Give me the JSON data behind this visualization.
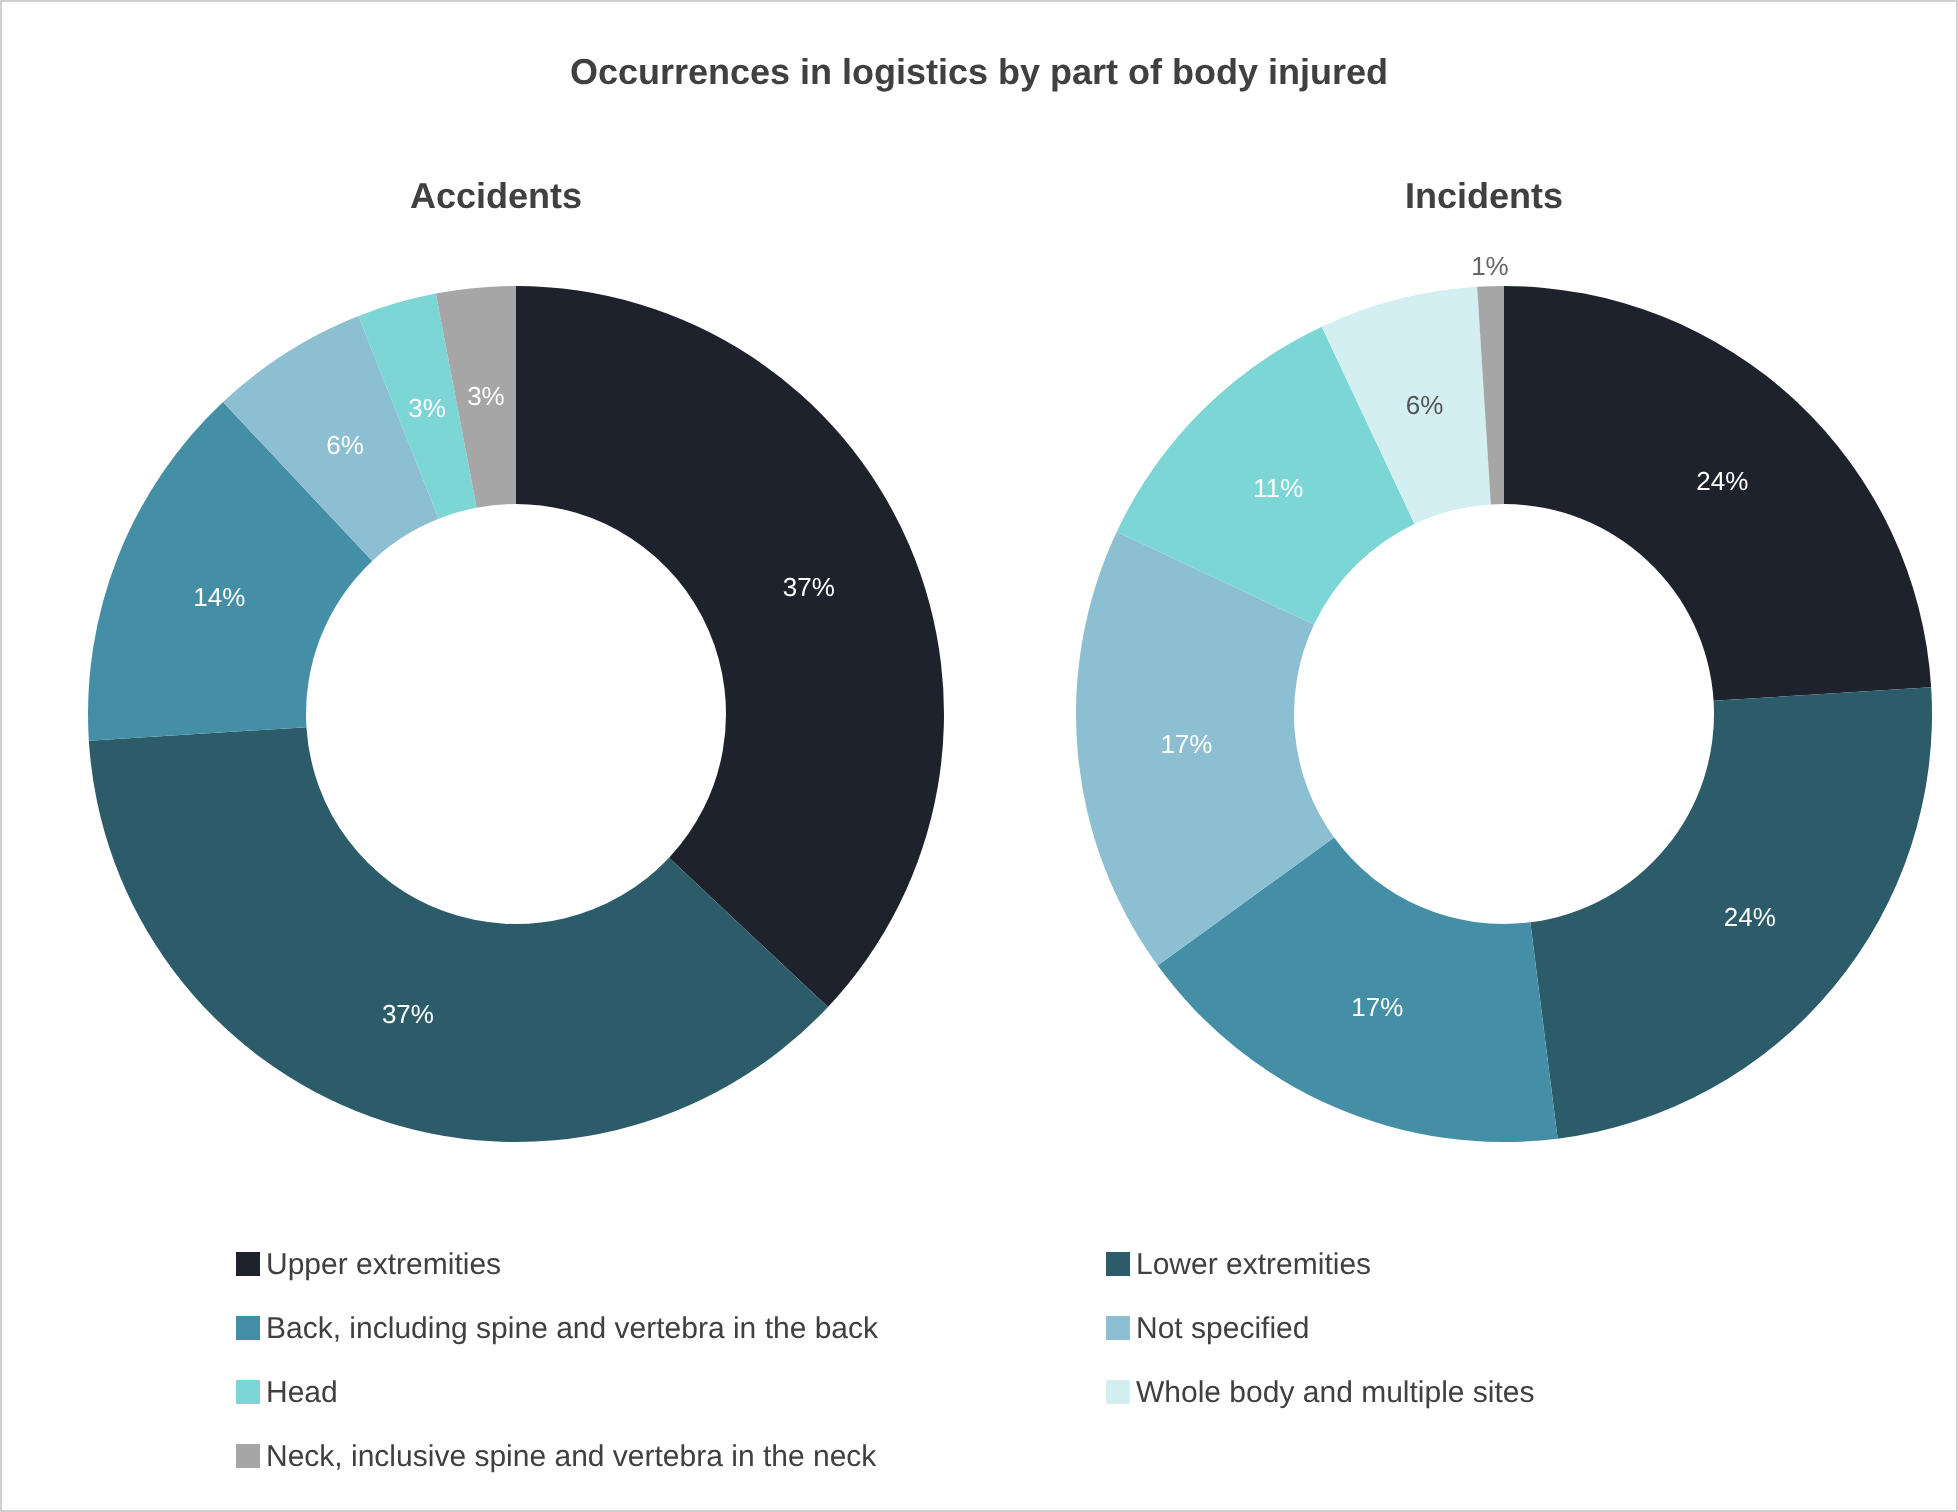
{
  "chart_data": [
    {
      "type": "donut",
      "title": "Occurrences in logistics by part of body injured",
      "subtitle": "Accidents",
      "categories": [
        "Upper extremities",
        "Lower extremities",
        "Back, including spine and vertebra in the back",
        "Not specified",
        "Head",
        "Whole body and multiple sites",
        "Neck, inclusive spine and vertebra in the neck"
      ],
      "values": [
        37,
        37,
        14,
        6,
        3,
        0,
        3
      ],
      "value_labels": [
        "37%",
        "37%",
        "14%",
        "6%",
        "3%",
        null,
        "3%"
      ],
      "colors": [
        "#1e222d",
        "#2c5c6a",
        "#458fa6",
        "#8dbfd2",
        "#7dd6d6",
        "#d3eff2",
        "#a6a6a6"
      ],
      "legend": "bottom"
    },
    {
      "type": "donut",
      "subtitle": "Incidents",
      "categories": [
        null,
        null,
        null,
        null,
        null,
        null,
        null
      ],
      "values": [
        24,
        24,
        17,
        17,
        11,
        6,
        1
      ],
      "value_labels": [
        "24%",
        "24%",
        "17%",
        "17%",
        "11%",
        "6%",
        "1%"
      ],
      "colors": [
        "#1e222d",
        "#2c5c6a",
        "#458fa6",
        "#8dbfd2",
        "#7dd6d6",
        "#d3eff2",
        "#a6a6a6"
      ]
    }
  ]
}
